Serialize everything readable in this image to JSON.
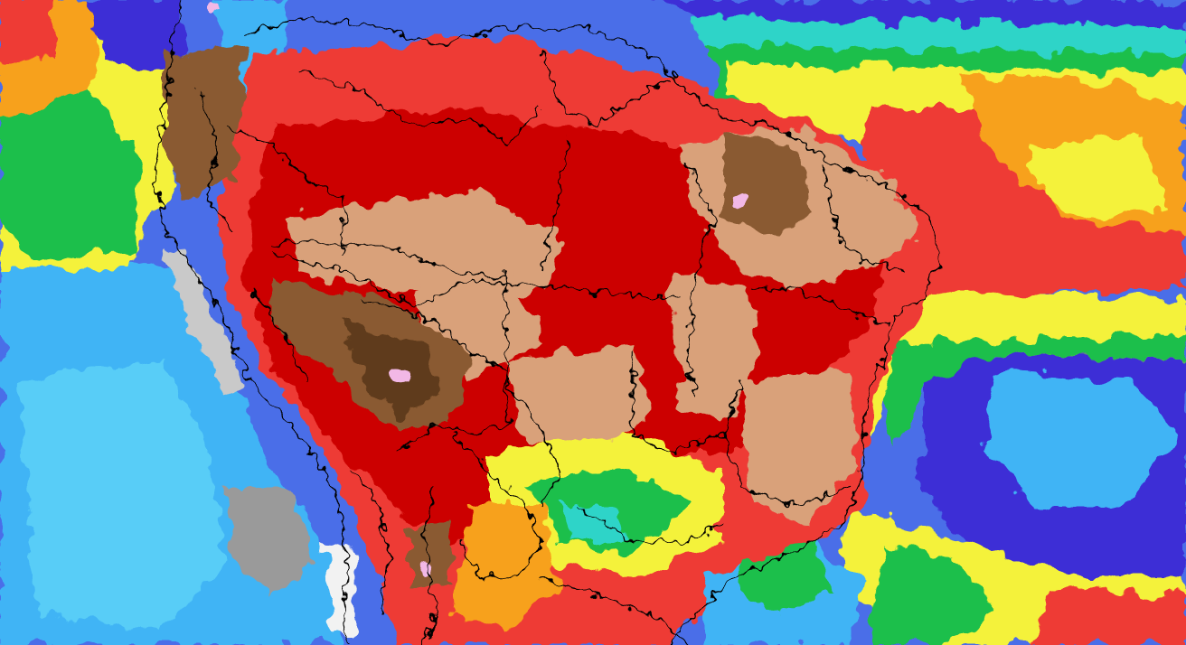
{
  "map": {
    "type": "weather-model-field",
    "palette": {
      "deep_blue": "#3d2fd6",
      "blue": "#4a6ee8",
      "sky_blue": "#41b4f5",
      "light_blue": "#58cdf7",
      "cyan": "#2fd4c8",
      "green": "#1fbf4c",
      "light_green": "#7ed957",
      "yellow": "#f4f23a",
      "orange": "#f7a11a",
      "red": "#ee3b35",
      "dark_red": "#cc0000",
      "tan": "#d9a17a",
      "brown": "#8a5a32",
      "dark_brown": "#5e3a1a",
      "pink": "#f2b8e6",
      "gray": "#9a9a9a",
      "light_gray": "#c9c9c9",
      "white": "#f2f2f2",
      "border": "#000000"
    },
    "legend_visible": false,
    "text_labels_visible": false
  }
}
